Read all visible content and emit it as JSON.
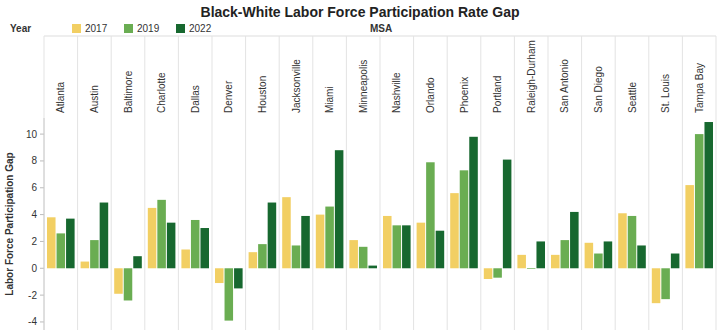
{
  "chart_data": {
    "type": "bar",
    "title": "Black-White Labor Force Participation Rate Gap",
    "legend_title": "Year",
    "xlabel": "MSA",
    "ylabel": "Labor Force Participation Gap",
    "categories": [
      "Atlanta",
      "Austin",
      "Baltimore",
      "Charlotte",
      "Dallas",
      "Denver",
      "Houston",
      "Jacksonville",
      "Miami",
      "Minneapolis",
      "Nashville",
      "Orlando",
      "Phoenix",
      "Portland",
      "Raleigh-Durham",
      "San Antonio",
      "San Diego",
      "Seattle",
      "St. Louis",
      "Tampa Bay"
    ],
    "series": [
      {
        "name": "2017",
        "color": "#f2cf63",
        "values": [
          3.8,
          0.5,
          -1.9,
          4.5,
          1.4,
          -1.1,
          1.2,
          5.3,
          4.0,
          2.1,
          3.9,
          3.4,
          5.6,
          -0.8,
          1.0,
          1.0,
          1.9,
          4.1,
          -2.6,
          6.2
        ]
      },
      {
        "name": "2019",
        "color": "#6aad52",
        "values": [
          2.6,
          2.1,
          -2.4,
          5.1,
          3.6,
          -3.9,
          1.8,
          1.7,
          4.6,
          1.6,
          3.2,
          7.9,
          7.3,
          -0.7,
          -0.05,
          2.1,
          1.1,
          3.9,
          -2.3,
          10.0
        ]
      },
      {
        "name": "2022",
        "color": "#17682f",
        "values": [
          3.7,
          4.9,
          0.9,
          3.4,
          3.0,
          -1.5,
          4.9,
          3.9,
          8.8,
          0.2,
          3.2,
          2.8,
          9.8,
          8.1,
          2.0,
          4.2,
          2.0,
          1.7,
          1.1,
          10.9
        ]
      }
    ],
    "ylim": [
      -4.6,
      11.2
    ],
    "yticks": [
      -4,
      -2,
      0,
      2,
      4,
      6,
      8,
      10
    ],
    "grid": false,
    "legend": "top"
  }
}
